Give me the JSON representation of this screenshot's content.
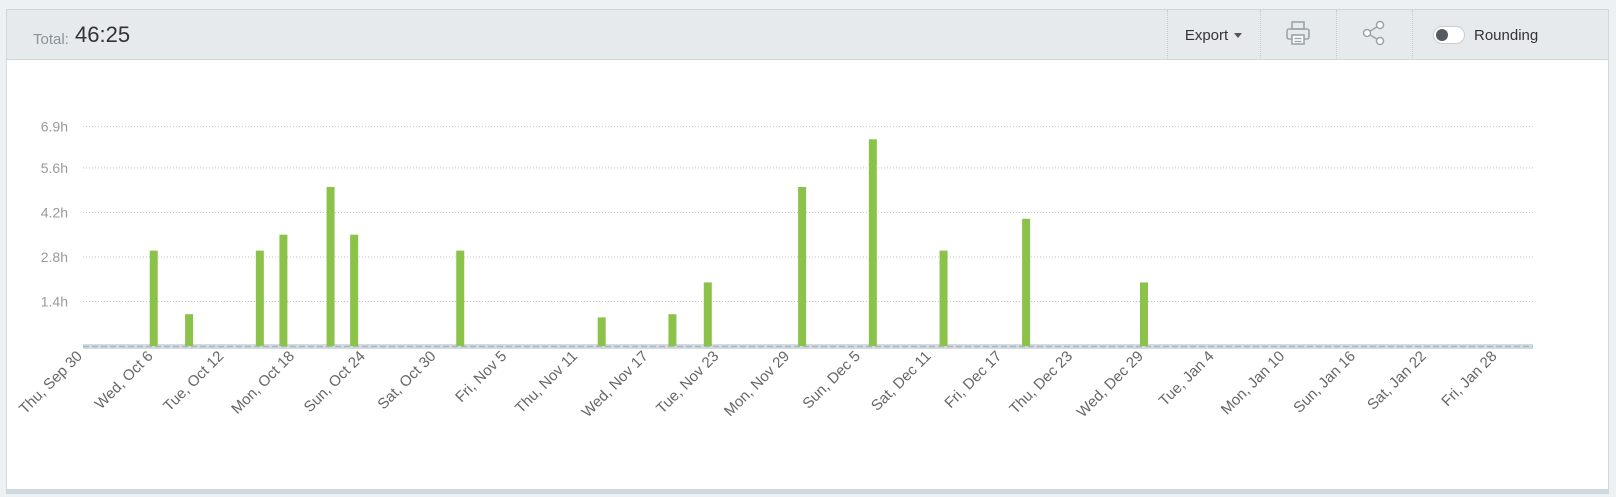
{
  "header": {
    "total_label": "Total:",
    "total_value": "46:25",
    "export_label": "Export",
    "print_icon": "printer-icon",
    "share_icon": "share-icon",
    "rounding_label": "Rounding",
    "rounding_on": false
  },
  "chart_data": {
    "type": "bar",
    "title": "",
    "xlabel": "",
    "ylabel": "",
    "ylim": [
      0,
      7.6
    ],
    "y_ticks": [
      1.4,
      2.8,
      4.2,
      5.6,
      6.9
    ],
    "y_tick_labels": [
      "1.4h",
      "2.8h",
      "4.2h",
      "5.6h",
      "6.9h"
    ],
    "grid": true,
    "bar_color": "#8bc34a",
    "x_start": "2021-09-30",
    "x_end": "2022-01-31",
    "x_tick_dates": [
      "2021-09-30",
      "2021-10-06",
      "2021-10-12",
      "2021-10-18",
      "2021-10-24",
      "2021-10-30",
      "2021-11-05",
      "2021-11-11",
      "2021-11-17",
      "2021-11-23",
      "2021-11-29",
      "2021-12-05",
      "2021-12-11",
      "2021-12-17",
      "2021-12-23",
      "2021-12-29",
      "2022-01-04",
      "2022-01-10",
      "2022-01-16",
      "2022-01-22",
      "2022-01-28"
    ],
    "x_tick_labels": [
      "Thu, Sep 30",
      "Wed, Oct 6",
      "Tue, Oct 12",
      "Mon, Oct 18",
      "Sun, Oct 24",
      "Sat, Oct 30",
      "Fri, Nov 5",
      "Thu, Nov 11",
      "Wed, Nov 17",
      "Tue, Nov 23",
      "Mon, Nov 29",
      "Sun, Dec 5",
      "Sat, Dec 11",
      "Fri, Dec 17",
      "Thu, Dec 23",
      "Wed, Dec 29",
      "Tue, Jan 4",
      "Mon, Jan 10",
      "Sun, Jan 16",
      "Sat, Jan 22",
      "Fri, Jan 28"
    ],
    "points": [
      {
        "date": "2021-10-06",
        "value": 3.0
      },
      {
        "date": "2021-10-09",
        "value": 1.0
      },
      {
        "date": "2021-10-15",
        "value": 3.0
      },
      {
        "date": "2021-10-17",
        "value": 3.5
      },
      {
        "date": "2021-10-21",
        "value": 5.0
      },
      {
        "date": "2021-10-23",
        "value": 3.5
      },
      {
        "date": "2021-11-01",
        "value": 3.0
      },
      {
        "date": "2021-11-13",
        "value": 0.9
      },
      {
        "date": "2021-11-19",
        "value": 1.0
      },
      {
        "date": "2021-11-22",
        "value": 2.0
      },
      {
        "date": "2021-11-30",
        "value": 5.0
      },
      {
        "date": "2021-12-06",
        "value": 6.5
      },
      {
        "date": "2021-12-12",
        "value": 3.0
      },
      {
        "date": "2021-12-19",
        "value": 4.0
      },
      {
        "date": "2021-12-29",
        "value": 2.0
      }
    ]
  }
}
